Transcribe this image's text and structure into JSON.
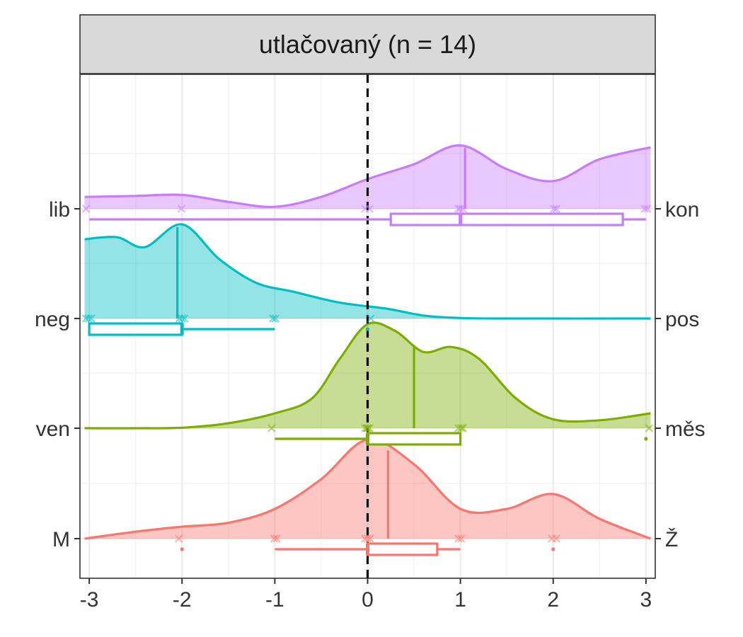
{
  "chart_data": {
    "type": "ridgeline-density",
    "title": "utlačovaný (n = 14)",
    "xlabel": "",
    "ylabel": "",
    "xlim": [
      -3.1,
      3.1
    ],
    "x_ticks": [
      -3,
      -2,
      -1,
      0,
      1,
      2,
      3
    ],
    "x_tick_labels": [
      "-3",
      "-2",
      "-1",
      "0",
      "1",
      "2",
      "3"
    ],
    "reference_line_x": 0,
    "grid": true,
    "rows": [
      {
        "left_label": "lib",
        "right_label": "kon",
        "color": "#C77CFF",
        "density": [
          [
            -3.05,
            0.12
          ],
          [
            -2.5,
            0.13
          ],
          [
            -2.0,
            0.14
          ],
          [
            -1.5,
            0.07
          ],
          [
            -1.0,
            0.02
          ],
          [
            -0.5,
            0.12
          ],
          [
            0.0,
            0.3
          ],
          [
            0.5,
            0.45
          ],
          [
            1.0,
            0.64
          ],
          [
            1.5,
            0.4
          ],
          [
            2.0,
            0.28
          ],
          [
            2.5,
            0.5
          ],
          [
            3.05,
            0.62
          ]
        ],
        "points": [
          -3,
          -2,
          0,
          0,
          1,
          1,
          1,
          2,
          2,
          3,
          3
        ],
        "median": 1.05,
        "box": {
          "min": -3,
          "q1": 0.25,
          "median": 1,
          "q3": 2.75,
          "max": 3
        },
        "outliers": []
      },
      {
        "left_label": "neg",
        "right_label": "pos",
        "color": "#00BFC4",
        "density": [
          [
            -3.05,
            0.8
          ],
          [
            -2.7,
            0.82
          ],
          [
            -2.4,
            0.72
          ],
          [
            -2.0,
            0.95
          ],
          [
            -1.6,
            0.6
          ],
          [
            -1.2,
            0.36
          ],
          [
            -0.8,
            0.27
          ],
          [
            -0.3,
            0.16
          ],
          [
            0.2,
            0.1
          ],
          [
            0.6,
            0.03
          ],
          [
            1.0,
            0.005
          ],
          [
            1.5,
            0.0
          ],
          [
            3.05,
            0.0
          ]
        ],
        "points": [
          -3,
          -3,
          -3,
          -2,
          -2,
          -2,
          -1,
          -1,
          0
        ],
        "median": -2.05,
        "box": {
          "min": -3,
          "q1": -3,
          "median": -2,
          "q3": -2,
          "max": -1
        },
        "outliers": [
          0
        ]
      },
      {
        "left_label": "ven",
        "right_label": "měs",
        "color": "#7CAE00",
        "density": [
          [
            -3.05,
            0.0
          ],
          [
            -2.5,
            0.0
          ],
          [
            -2.0,
            0.005
          ],
          [
            -1.5,
            0.05
          ],
          [
            -1.0,
            0.15
          ],
          [
            -0.6,
            0.3
          ],
          [
            -0.3,
            0.7
          ],
          [
            0.0,
            1.05
          ],
          [
            0.3,
            0.98
          ],
          [
            0.6,
            0.77
          ],
          [
            0.9,
            0.82
          ],
          [
            1.2,
            0.7
          ],
          [
            1.6,
            0.3
          ],
          [
            2.0,
            0.09
          ],
          [
            2.5,
            0.08
          ],
          [
            3.05,
            0.15
          ]
        ],
        "points": [
          -1,
          0,
          0,
          0,
          0,
          1,
          1,
          1,
          3
        ],
        "median": 0.5,
        "box": {
          "min": -1,
          "q1": 0,
          "median": 0,
          "q3": 1,
          "max": 1
        },
        "outliers": [
          3
        ]
      },
      {
        "left_label": "M",
        "right_label": "Ž",
        "color": "#F8766D",
        "density": [
          [
            -3.05,
            0.0
          ],
          [
            -2.5,
            0.07
          ],
          [
            -2.0,
            0.12
          ],
          [
            -1.5,
            0.16
          ],
          [
            -1.0,
            0.3
          ],
          [
            -0.5,
            0.6
          ],
          [
            0.0,
            1.0
          ],
          [
            0.5,
            0.75
          ],
          [
            1.0,
            0.3
          ],
          [
            1.5,
            0.3
          ],
          [
            2.0,
            0.45
          ],
          [
            2.5,
            0.2
          ],
          [
            3.05,
            0.0
          ]
        ],
        "points": [
          -2,
          -1,
          -1,
          0,
          0,
          0,
          1,
          1,
          2,
          2
        ],
        "median": 0.22,
        "box": {
          "min": -1,
          "q1": 0,
          "median": 0,
          "q3": 0.75,
          "max": 1
        },
        "outliers": [
          -2,
          2
        ]
      }
    ]
  }
}
